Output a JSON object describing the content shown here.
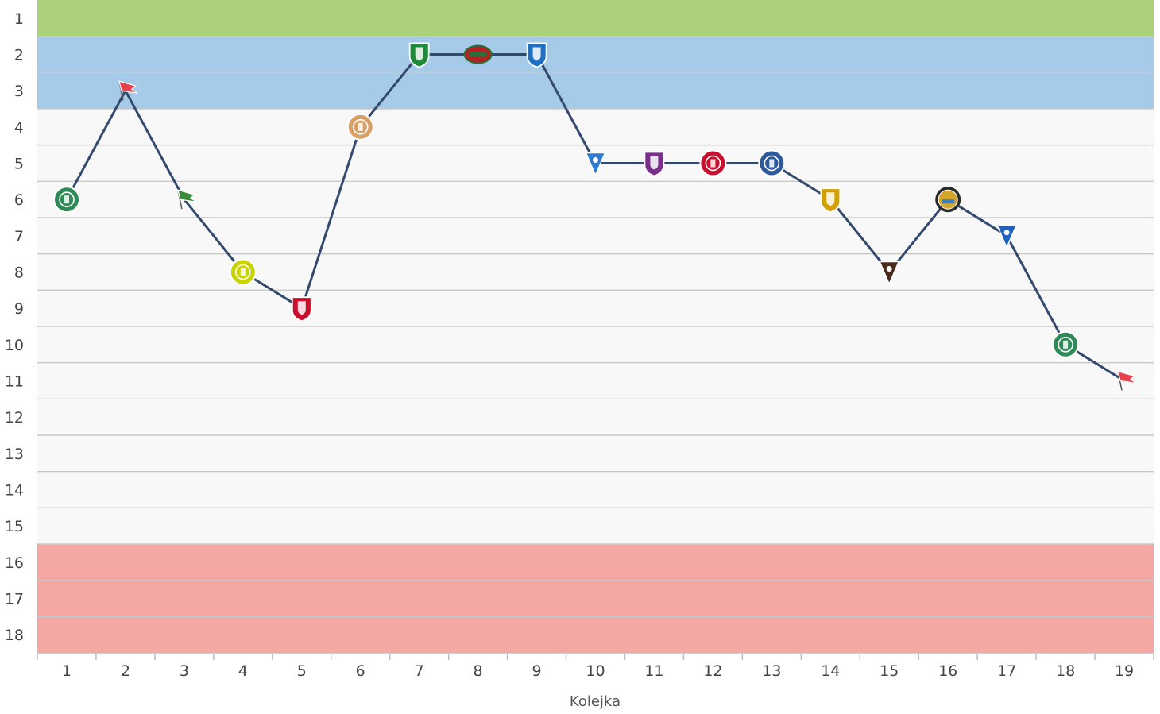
{
  "chart_data": {
    "type": "line",
    "xlabel": "Kolejka",
    "ylabel": "",
    "x": [
      1,
      2,
      3,
      4,
      5,
      6,
      7,
      8,
      9,
      10,
      11,
      12,
      13,
      14,
      15,
      16,
      17,
      18,
      19
    ],
    "series": [
      {
        "values": [
          6,
          3,
          6,
          8,
          9,
          4,
          2,
          2,
          2,
          5,
          5,
          5,
          5,
          6,
          8,
          6,
          7,
          10,
          11
        ],
        "color": "#34496e",
        "markers": [
          {
            "icon": "green-round-crest-icon",
            "color": "#2e8b57"
          },
          {
            "icon": "red-white-flag-icon",
            "color": "#e8424f"
          },
          {
            "icon": "green-flag-icon",
            "color": "#3a8a3a"
          },
          {
            "icon": "yellow-green-crest-icon",
            "color": "#c8d400"
          },
          {
            "icon": "red-gold-shield-icon",
            "color": "#c8102e"
          },
          {
            "icon": "striped-round-crest-icon",
            "color": "#d9a066"
          },
          {
            "icon": "green-white-shield-icon",
            "color": "#1e8a3a"
          },
          {
            "icon": "red-green-oval-crest-icon",
            "color": "#b22222"
          },
          {
            "icon": "blue-white-shield-icon",
            "color": "#1f6fc4"
          },
          {
            "icon": "blue-white-pennant-icon",
            "color": "#2a7ad6"
          },
          {
            "icon": "purple-red-shield-icon",
            "color": "#7a2f8a"
          },
          {
            "icon": "red-white-round-crest-icon",
            "color": "#c8102e"
          },
          {
            "icon": "blue-orange-crest-icon",
            "color": "#2d5a9c"
          },
          {
            "icon": "yellow-red-shield-icon",
            "color": "#d4a000"
          },
          {
            "icon": "dark-pennant-icon",
            "color": "#4a2a1a"
          },
          {
            "icon": "gold-sun-crest-icon",
            "color": "#d4a72c"
          },
          {
            "icon": "blue-red-triangle-crest-icon",
            "color": "#1f5fbf"
          },
          {
            "icon": "green-round-crest-icon",
            "color": "#2e8b57"
          },
          {
            "icon": "red-white-flag-icon",
            "color": "#e8424f"
          }
        ]
      }
    ],
    "ylim": [
      18,
      1
    ],
    "yticks": [
      1,
      2,
      3,
      4,
      5,
      6,
      7,
      8,
      9,
      10,
      11,
      12,
      13,
      14,
      15,
      16,
      17,
      18
    ],
    "xticks": [
      1,
      2,
      3,
      4,
      5,
      6,
      7,
      8,
      9,
      10,
      11,
      12,
      13,
      14,
      15,
      16,
      17,
      18,
      19
    ],
    "bands": [
      {
        "from": 1,
        "to": 1,
        "color": "#acd17a"
      },
      {
        "from": 2,
        "to": 3,
        "color": "#a6cbe8"
      },
      {
        "from": 4,
        "to": 15,
        "color": "#f8f8f8"
      },
      {
        "from": 16,
        "to": 18,
        "color": "#f5a8a3"
      }
    ],
    "grid": true,
    "grid_color": "#c9c9c9",
    "axis_color": "#bdbdbd"
  }
}
